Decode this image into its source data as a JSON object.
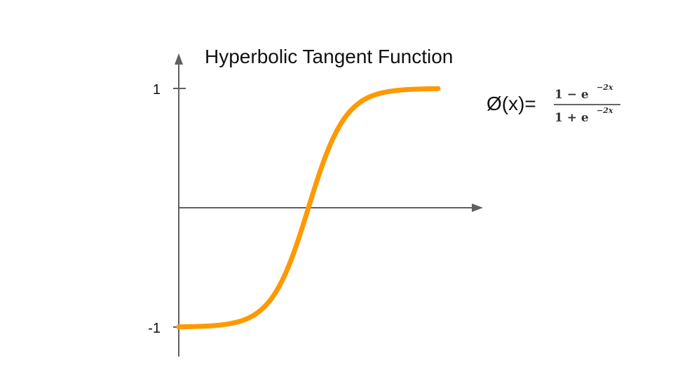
{
  "chart_data": {
    "type": "line",
    "title": "Hyperbolic Tangent  Function",
    "xlabel": "",
    "ylabel": "",
    "ylim": [
      -1,
      1
    ],
    "xlim": [
      -3.5,
      3.5
    ],
    "y_ticks": [
      {
        "value": 1,
        "label": "1"
      },
      {
        "value": -1,
        "label": "-1"
      }
    ],
    "grid": false,
    "series": [
      {
        "function": "tanh",
        "x": [
          -3.5,
          -3.0,
          -2.5,
          -2.0,
          -1.5,
          -1.0,
          -0.5,
          0.0,
          0.5,
          1.0,
          1.5,
          2.0,
          2.5,
          3.0,
          3.5
        ],
        "y": [
          -0.998,
          -0.995,
          -0.987,
          -0.964,
          -0.905,
          -0.762,
          -0.462,
          0.0,
          0.462,
          0.762,
          0.905,
          0.964,
          0.987,
          0.995,
          0.998
        ],
        "color": "#FF9900"
      }
    ],
    "formula": {
      "lhs": "Ø(x)=",
      "numerator": "1 − e",
      "denominator": "1 + e",
      "exponent": "−2x"
    },
    "colors": {
      "axis": "#606060",
      "curve": "#FF9900",
      "text": "#111111"
    }
  }
}
